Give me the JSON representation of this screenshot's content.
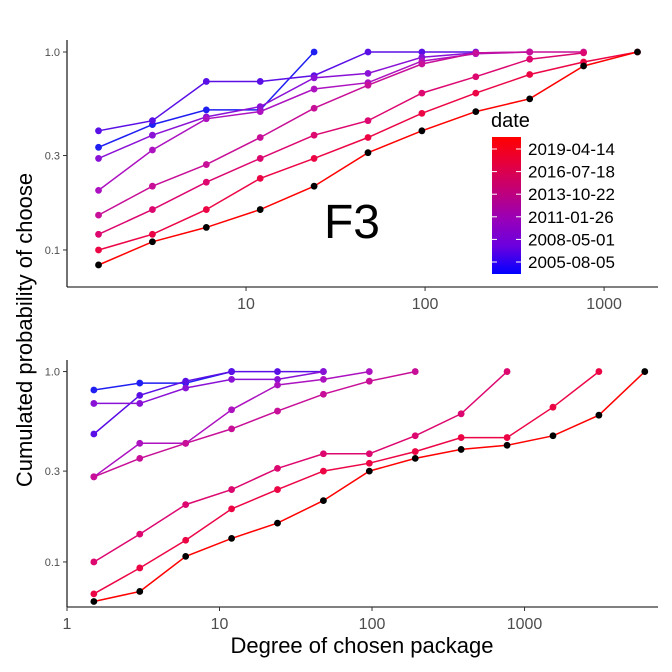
{
  "chart_data": {
    "type": "line",
    "xlabel": "Degree of chosen package",
    "ylabel": "Cumulated probability of choose",
    "x_scale": "log10",
    "y_scale": "log10",
    "grid": false,
    "legend": {
      "title": "date",
      "placement": "right, inside top panel",
      "labels": [
        "2019-04-14",
        "2016-07-18",
        "2013-10-22",
        "2011-01-26",
        "2008-05-01",
        "2005-08-05"
      ],
      "gradient_colors": [
        "#ff0000",
        "#e4003f",
        "#c0007a",
        "#9800b8",
        "#6a00e0",
        "#0000ff"
      ]
    },
    "panels": [
      {
        "annotation": "F3",
        "xlim": [
          1,
          2000
        ],
        "ylim": [
          0.065,
          1.15
        ],
        "x_ticks": [
          10,
          100,
          1000
        ],
        "x_tick_labels": [
          "10",
          "100",
          "1000"
        ],
        "y_ticks": [
          0.1,
          0.3,
          1.0
        ],
        "y_tick_labels": [
          "0.1",
          "0.3",
          "1.0"
        ],
        "series": [
          {
            "color": "#1f1ff2",
            "x": [
              1.5,
              3,
              6,
              12,
              24
            ],
            "y": [
              0.33,
              0.43,
              0.51,
              0.51,
              1.0
            ]
          },
          {
            "color": "#5a0fe6",
            "x": [
              1.5,
              3,
              6,
              12,
              24,
              48,
              96,
              192
            ],
            "y": [
              0.4,
              0.45,
              0.71,
              0.71,
              0.76,
              1.0,
              1.0,
              1.0
            ]
          },
          {
            "color": "#8a12d6",
            "x": [
              1.5,
              3,
              6,
              12,
              24,
              48,
              96,
              192,
              384
            ],
            "y": [
              0.29,
              0.38,
              0.47,
              0.53,
              0.74,
              0.78,
              0.94,
              0.99,
              1.0
            ]
          },
          {
            "color": "#ac12c0",
            "x": [
              1.5,
              3,
              6,
              12,
              24,
              48,
              96,
              192,
              384
            ],
            "y": [
              0.2,
              0.32,
              0.46,
              0.5,
              0.65,
              0.7,
              0.9,
              0.98,
              1.0
            ]
          },
          {
            "color": "#c70f98",
            "x": [
              1.5,
              3,
              6,
              12,
              24,
              48,
              96,
              192,
              384,
              768
            ],
            "y": [
              0.15,
              0.21,
              0.27,
              0.37,
              0.52,
              0.68,
              0.87,
              0.99,
              1.0,
              1.0
            ]
          },
          {
            "color": "#dc0870",
            "x": [
              1.5,
              3,
              6,
              12,
              24,
              48,
              96,
              192,
              384,
              768
            ],
            "y": [
              0.12,
              0.16,
              0.22,
              0.29,
              0.38,
              0.45,
              0.62,
              0.75,
              0.92,
              0.99
            ]
          },
          {
            "color": "#ec0545",
            "x": [
              1.5,
              3,
              6,
              12,
              24,
              48,
              96,
              192,
              384,
              768,
              1536
            ],
            "y": [
              0.1,
              0.12,
              0.16,
              0.23,
              0.29,
              0.37,
              0.49,
              0.62,
              0.77,
              0.89,
              1.0
            ]
          },
          {
            "color": "#ff0000",
            "point_color": "#000000",
            "x": [
              1.5,
              3,
              6,
              12,
              24,
              48,
              96,
              192,
              384,
              768,
              1536
            ],
            "y": [
              0.084,
              0.11,
              0.13,
              0.16,
              0.21,
              0.31,
              0.4,
              0.5,
              0.58,
              0.85,
              1.0
            ]
          }
        ]
      },
      {
        "xlim": [
          1,
          7500
        ],
        "ylim": [
          0.058,
          1.15
        ],
        "x_ticks": [
          1,
          10,
          100,
          1000
        ],
        "x_tick_labels": [
          "1",
          "10",
          "100",
          "1000"
        ],
        "y_ticks": [
          0.1,
          0.3,
          1.0
        ],
        "y_tick_labels": [
          "0.1",
          "0.3",
          "1.0"
        ],
        "series": [
          {
            "color": "#1f1ff2",
            "x": [
              1.5,
              3,
              6,
              12
            ],
            "y": [
              0.8,
              0.87,
              0.87,
              1.0
            ]
          },
          {
            "color": "#5a0fe6",
            "x": [
              1.5,
              3,
              6,
              12,
              24,
              48
            ],
            "y": [
              0.47,
              0.75,
              0.89,
              1.0,
              1.0,
              1.0
            ]
          },
          {
            "color": "#8a12d6",
            "x": [
              1.5,
              3,
              6,
              12,
              24,
              48
            ],
            "y": [
              0.68,
              0.68,
              0.82,
              0.91,
              0.91,
              1.0
            ]
          },
          {
            "color": "#ac12c0",
            "x": [
              1.5,
              3,
              6,
              12,
              24,
              48,
              96
            ],
            "y": [
              0.28,
              0.42,
              0.42,
              0.63,
              0.85,
              0.91,
              1.0
            ]
          },
          {
            "color": "#c70f98",
            "x": [
              1.5,
              3,
              6,
              12,
              24,
              48,
              96,
              192
            ],
            "y": [
              0.28,
              0.35,
              0.42,
              0.5,
              0.62,
              0.76,
              0.89,
              1.0
            ]
          },
          {
            "color": "#dc0870",
            "x": [
              1.5,
              3,
              6,
              12,
              24,
              48,
              96,
              192,
              384,
              768
            ],
            "y": [
              0.1,
              0.14,
              0.2,
              0.24,
              0.31,
              0.37,
              0.37,
              0.46,
              0.6,
              1.0
            ]
          },
          {
            "color": "#ec0545",
            "x": [
              1.5,
              3,
              6,
              12,
              24,
              48,
              96,
              192,
              384,
              768,
              1536,
              3072
            ],
            "y": [
              0.068,
              0.093,
              0.13,
              0.19,
              0.24,
              0.3,
              0.33,
              0.38,
              0.45,
              0.45,
              0.65,
              1.0
            ]
          },
          {
            "color": "#ff0000",
            "point_color": "#000000",
            "x": [
              1.5,
              3,
              6,
              12,
              24,
              48,
              96,
              192,
              384,
              768,
              1536,
              3072,
              6144
            ],
            "y": [
              0.062,
              0.07,
              0.107,
              0.133,
              0.16,
              0.21,
              0.3,
              0.35,
              0.39,
              0.41,
              0.46,
              0.59,
              1.0
            ]
          }
        ]
      }
    ]
  }
}
